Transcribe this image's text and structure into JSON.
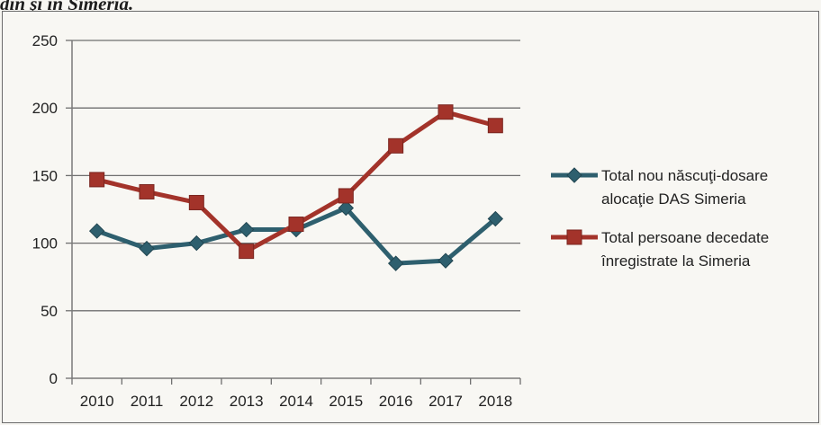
{
  "caption": "din şi în Simeria.",
  "chart_data": {
    "type": "line",
    "categories": [
      "2010",
      "2011",
      "2012",
      "2013",
      "2014",
      "2015",
      "2016",
      "2017",
      "2018"
    ],
    "ylim": [
      0,
      250
    ],
    "yticks": [
      "0",
      "50",
      "100",
      "150",
      "200",
      "250"
    ],
    "grid": "horizontal",
    "legend_position": "right",
    "series": [
      {
        "name": "Total nou născuţi-dosare alocaţie DAS Simeria",
        "legend_lines": [
          "Total nou născuţi-dosare",
          "alocaţie DAS Simeria"
        ],
        "color": "#2e5f6e",
        "marker": "diamond",
        "values": [
          109,
          96,
          100,
          110,
          110,
          126,
          85,
          87,
          118
        ]
      },
      {
        "name": "Total persoane decedate înregistrate la Simeria",
        "legend_lines": [
          "Total persoane decedate",
          "înregistrate la Simeria"
        ],
        "color": "#a3332a",
        "marker": "square",
        "values": [
          147,
          138,
          130,
          94,
          114,
          135,
          172,
          197,
          187
        ]
      }
    ]
  }
}
